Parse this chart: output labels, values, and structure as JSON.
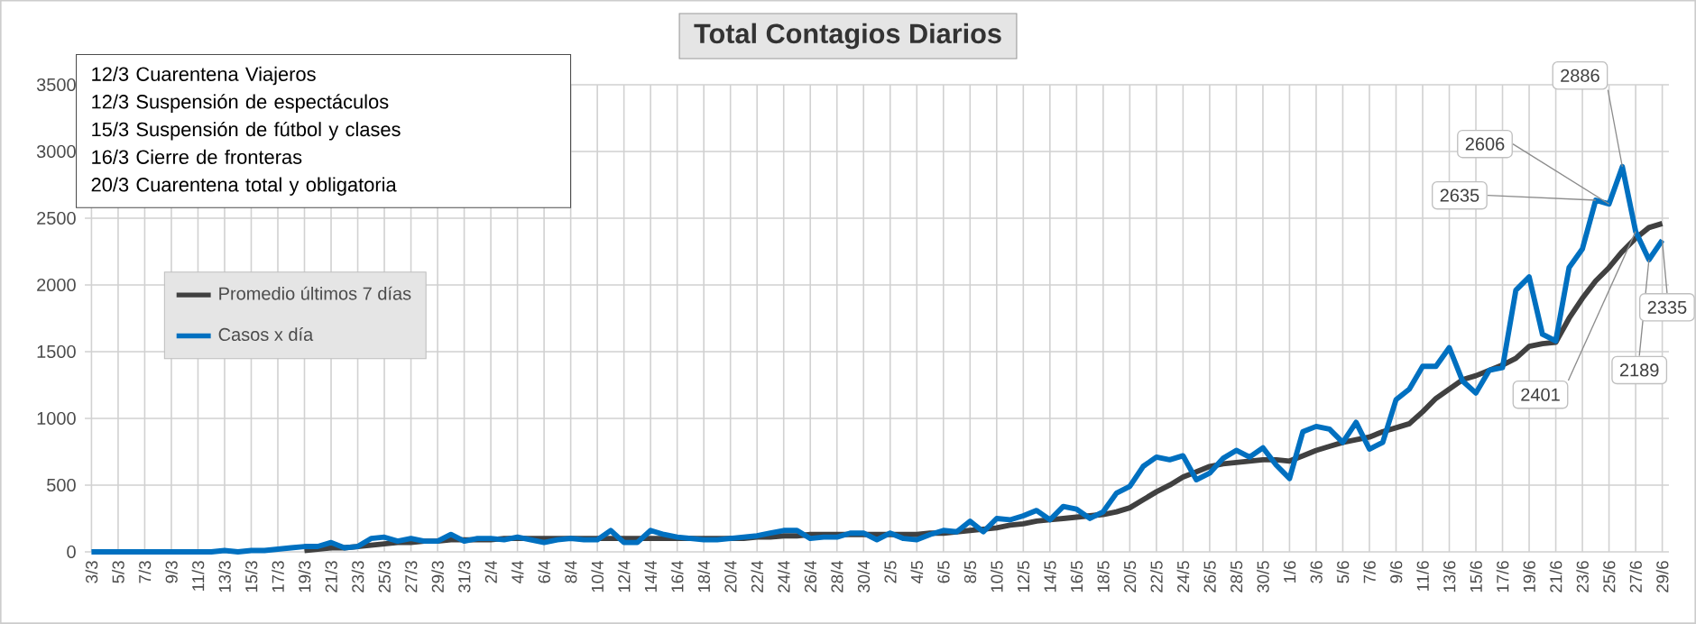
{
  "chart_data": {
    "type": "line",
    "title": "Total  Contagios  Diarios",
    "categories": [
      "3/3",
      null,
      "5/3",
      null,
      "7/3",
      null,
      "9/3",
      null,
      "11/3",
      null,
      "13/3",
      null,
      "15/3",
      null,
      "17/3",
      null,
      "19/3",
      null,
      "21/3",
      null,
      "23/3",
      null,
      "25/3",
      null,
      "27/3",
      null,
      "29/3",
      null,
      "31/3",
      null,
      "2/4",
      null,
      "4/4",
      null,
      "6/4",
      null,
      "8/4",
      null,
      "10/4",
      null,
      "12/4",
      null,
      "14/4",
      null,
      "16/4",
      null,
      "18/4",
      null,
      "20/4",
      null,
      "22/4",
      null,
      "24/4",
      null,
      "26/4",
      null,
      "28/4",
      null,
      "30/4",
      null,
      "2/5",
      null,
      "4/5",
      null,
      "6/5",
      null,
      "8/5",
      null,
      "10/5",
      null,
      "12/5",
      null,
      "14/5",
      null,
      "16/5",
      null,
      "18/5",
      null,
      "20/5",
      null,
      "22/5",
      null,
      "24/5",
      null,
      "26/5",
      null,
      "28/5",
      null,
      "30/5",
      null,
      "1/6",
      null,
      "3/6",
      null,
      "5/6",
      null,
      "7/6",
      null,
      "9/6",
      null,
      "11/6",
      null,
      "13/6",
      null,
      "15/6",
      null,
      "17/6",
      null,
      "19/6",
      null,
      "21/6",
      null,
      "23/6",
      null,
      "25/6",
      null,
      "27/6",
      null,
      "29/6"
    ],
    "series": [
      {
        "name": "Promedio últimos 7 días",
        "color": "#404040",
        "values": [
          null,
          null,
          null,
          null,
          null,
          null,
          null,
          null,
          null,
          null,
          null,
          null,
          null,
          null,
          null,
          null,
          10,
          20,
          30,
          30,
          40,
          50,
          60,
          70,
          70,
          80,
          80,
          90,
          90,
          90,
          90,
          100,
          100,
          100,
          100,
          100,
          100,
          100,
          100,
          100,
          100,
          100,
          100,
          100,
          100,
          100,
          100,
          100,
          100,
          100,
          110,
          110,
          120,
          120,
          130,
          130,
          130,
          130,
          130,
          130,
          130,
          130,
          130,
          140,
          140,
          150,
          160,
          170,
          180,
          200,
          210,
          230,
          240,
          250,
          260,
          270,
          280,
          300,
          330,
          390,
          450,
          500,
          560,
          600,
          640,
          660,
          670,
          680,
          690,
          690,
          680,
          720,
          760,
          790,
          820,
          840,
          860,
          900,
          930,
          960,
          1050,
          1150,
          1220,
          1290,
          1320,
          1360,
          1400,
          1450,
          1540,
          1560,
          1570,
          1750,
          1900,
          2030,
          2130,
          2250,
          2350,
          2430,
          2460
        ]
      },
      {
        "name": "Casos x día",
        "color": "#0070c0",
        "values": [
          0,
          0,
          0,
          0,
          0,
          0,
          0,
          0,
          0,
          0,
          10,
          0,
          10,
          10,
          20,
          30,
          40,
          40,
          70,
          30,
          40,
          100,
          110,
          80,
          100,
          80,
          80,
          130,
          80,
          100,
          100,
          90,
          110,
          90,
          70,
          90,
          100,
          90,
          90,
          160,
          70,
          70,
          160,
          130,
          110,
          100,
          90,
          90,
          100,
          110,
          120,
          140,
          160,
          160,
          100,
          110,
          110,
          140,
          140,
          90,
          140,
          100,
          90,
          130,
          160,
          150,
          230,
          150,
          250,
          240,
          270,
          310,
          240,
          340,
          320,
          250,
          300,
          440,
          490,
          640,
          710,
          690,
          720,
          540,
          590,
          700,
          760,
          710,
          780,
          650,
          550,
          900,
          940,
          920,
          820,
          970,
          770,
          820,
          1140,
          1220,
          1390,
          1390,
          1530,
          1280,
          1190,
          1360,
          1380,
          1960,
          2060,
          1630,
          1580,
          2130,
          2270,
          2635,
          2606,
          2886,
          2401,
          2189,
          2335
        ],
        "value_labels": [
          null,
          null,
          null,
          null,
          null,
          null,
          null,
          null,
          null,
          null,
          null,
          null,
          null,
          null,
          null,
          null,
          null,
          null,
          null,
          null,
          null,
          null,
          null,
          null,
          null,
          null,
          null,
          null,
          null,
          null,
          null,
          null,
          null,
          null,
          null,
          null,
          null,
          null,
          null,
          null,
          null,
          null,
          null,
          null,
          null,
          null,
          null,
          null,
          null,
          null,
          null,
          null,
          null,
          null,
          null,
          null,
          null,
          null,
          null,
          null,
          null,
          null,
          null,
          null,
          null,
          null,
          null,
          null,
          null,
          null,
          null,
          null,
          null,
          null,
          null,
          null,
          null,
          null,
          null,
          null,
          null,
          null,
          null,
          null,
          null,
          null,
          null,
          null,
          null,
          null,
          null,
          null,
          null,
          null,
          null,
          null,
          null,
          null,
          null,
          null,
          null,
          null,
          null,
          null,
          null,
          null,
          null,
          null,
          null,
          null,
          null,
          null,
          null,
          "2635",
          "2606",
          "2886",
          "2401",
          "2189",
          "2335"
        ]
      }
    ],
    "ylim": [
      0,
      3500
    ],
    "yticks": [
      0,
      500,
      1000,
      1500,
      2000,
      2500,
      3000,
      3500
    ],
    "grid": true,
    "legend": "top left",
    "annotations": [
      "12/3 Cuarentena Viajeros",
      "12/3 Suspensión de espectáculos",
      "15/3 Suspensión de fútbol y clases",
      "16/3 Cierre de fronteras",
      "20/3 Cuarentena total y obligatoria"
    ]
  }
}
